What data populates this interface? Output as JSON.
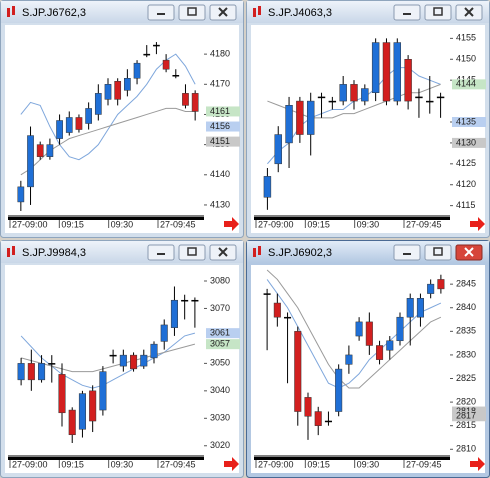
{
  "chart_data": [
    {
      "type": "candlestick",
      "title": "S.JP.J6762,3",
      "active": false,
      "up_color": "#1f6fd6",
      "down_color": "#d21f1f",
      "x_labels": [
        "27-09:00",
        "09:15",
        "09:30",
        "27-09:45"
      ],
      "open": [
        4131,
        4136,
        4150,
        4146,
        4152,
        4154,
        4159,
        4157,
        4160,
        4165,
        4171,
        4168,
        4172,
        4180,
        4183,
        4178,
        4173,
        4167,
        4167
      ],
      "high": [
        4138,
        4156,
        4151,
        4152,
        4160,
        4161,
        4160,
        4164,
        4170,
        4172,
        4172,
        4175,
        4178,
        4183,
        4184,
        4180,
        4175,
        4170,
        4168
      ],
      "low": [
        4128,
        4130,
        4145,
        4145,
        4150,
        4153,
        4154,
        4155,
        4158,
        4163,
        4163,
        4166,
        4170,
        4179,
        4180,
        4174,
        4172,
        4162,
        4158
      ],
      "close": [
        4136,
        4153,
        4146,
        4150,
        4158,
        4159,
        4155,
        4162,
        4167,
        4170,
        4165,
        4172,
        4177,
        4180,
        4183,
        4175,
        4173,
        4163,
        4161
      ],
      "series": [
        {
          "color": "#7fa7dc",
          "values": [
            4160,
            4164,
            4163,
            4156,
            4150,
            4146,
            4145,
            4147,
            4150,
            4155,
            4160,
            4163,
            4166,
            4170,
            4175,
            4178,
            4180,
            4176,
            4170
          ]
        },
        {
          "color": "#9a9a9a",
          "values": [
            4140,
            4142,
            4145,
            4148,
            4150,
            4152,
            4153,
            4154,
            4155,
            4156,
            4157,
            4158,
            4159,
            4160,
            4161,
            4162,
            4162,
            4161,
            4161
          ]
        }
      ],
      "ylim": [
        4127,
        4188
      ],
      "yticks": [
        4130,
        4140,
        4150,
        4160,
        4170,
        4180
      ],
      "price_labels": [
        {
          "value": 4161,
          "color": "#c6e5c6"
        },
        {
          "value": 4156,
          "color": "#b9cff0"
        },
        {
          "value": 4151,
          "color": "#c8c8c8"
        }
      ]
    },
    {
      "type": "candlestick",
      "title": "S.JP.J4063,3",
      "active": false,
      "up_color": "#1f6fd6",
      "down_color": "#d21f1f",
      "x_labels": [
        "27-09:00",
        "09:15",
        "09:30",
        "27-09:45"
      ],
      "open": [
        4117,
        4125,
        4130,
        4140,
        4132,
        4141,
        4140,
        4140,
        4144,
        4140,
        4142,
        4154,
        4140,
        4150,
        4141,
        4140,
        4141
      ],
      "high": [
        4124,
        4134,
        4141,
        4141,
        4142,
        4142,
        4141,
        4146,
        4145,
        4144,
        4155,
        4155,
        4155,
        4151,
        4143,
        4146,
        4142
      ],
      "low": [
        4114,
        4123,
        4124,
        4130,
        4127,
        4136,
        4138,
        4139,
        4138,
        4139,
        4140,
        4139,
        4139,
        4138,
        4136,
        4137,
        4136
      ],
      "close": [
        4122,
        4132,
        4139,
        4132,
        4140,
        4141,
        4140,
        4144,
        4140,
        4143,
        4154,
        4140,
        4154,
        4140,
        4141,
        4140,
        4141
      ],
      "series": [
        {
          "color": "#7fa7dc",
          "values": [
            4125,
            4128,
            4130,
            4134,
            4136,
            4137,
            4138,
            4138,
            4140,
            4141,
            4143,
            4146,
            4148,
            4148,
            4146,
            4145,
            4144
          ]
        },
        {
          "color": "#9a9a9a",
          "values": [
            4140,
            4139,
            4138,
            4137,
            4136,
            4136,
            4136,
            4137,
            4137,
            4138,
            4139,
            4140,
            4141,
            4142,
            4142,
            4143,
            4144
          ]
        }
      ],
      "ylim": [
        4113,
        4157
      ],
      "yticks": [
        4115,
        4120,
        4125,
        4130,
        4135,
        4145,
        4150,
        4155
      ],
      "price_labels": [
        {
          "value": 4144,
          "color": "#c6e5c6"
        },
        {
          "value": 4135,
          "color": "#b9cff0"
        },
        {
          "value": 4130,
          "color": "#c8c8c8"
        }
      ]
    },
    {
      "type": "candlestick",
      "title": "S.JP.J9984,3",
      "active": false,
      "up_color": "#1f6fd6",
      "down_color": "#d21f1f",
      "x_labels": [
        "27-09:00",
        "09:15",
        "09:30",
        "27-09:45"
      ],
      "open": [
        3044,
        3050,
        3044,
        3050,
        3046,
        3033,
        3026,
        3040,
        3033,
        3053,
        3049,
        3053,
        3049,
        3052,
        3058,
        3063,
        3073,
        3073
      ],
      "high": [
        3052,
        3055,
        3053,
        3053,
        3050,
        3034,
        3040,
        3042,
        3049,
        3055,
        3055,
        3054,
        3055,
        3058,
        3066,
        3078,
        3075,
        3074
      ],
      "low": [
        3042,
        3040,
        3043,
        3043,
        3027,
        3021,
        3023,
        3025,
        3031,
        3050,
        3047,
        3047,
        3048,
        3050,
        3055,
        3060,
        3066,
        3063
      ],
      "close": [
        3050,
        3044,
        3050,
        3050,
        3032,
        3024,
        3039,
        3029,
        3047,
        3053,
        3053,
        3048,
        3053,
        3057,
        3064,
        3073,
        3073,
        3073
      ],
      "series": [
        {
          "color": "#7fa7dc",
          "values": [
            3060,
            3056,
            3052,
            3049,
            3046,
            3044,
            3042,
            3041,
            3042,
            3044,
            3046,
            3048,
            3050,
            3052,
            3054,
            3057,
            3060,
            3061
          ]
        },
        {
          "color": "#9a9a9a",
          "values": [
            3052,
            3051,
            3050,
            3049,
            3048,
            3047,
            3047,
            3047,
            3048,
            3049,
            3050,
            3051,
            3052,
            3053,
            3054,
            3055,
            3056,
            3057
          ]
        }
      ],
      "ylim": [
        3017,
        3084
      ],
      "yticks": [
        3020,
        3030,
        3040,
        3050,
        3070,
        3080
      ],
      "price_labels": [
        {
          "value": 3061,
          "color": "#b9cff0"
        },
        {
          "value": 3057,
          "color": "#c6e5c6"
        }
      ]
    },
    {
      "type": "candlestick",
      "title": "S.JP.J6902,3",
      "active": true,
      "up_color": "#1f6fd6",
      "down_color": "#d21f1f",
      "x_labels": [
        "27-09:00",
        "09:15",
        "09:30",
        "27-09:45"
      ],
      "open": [
        2843,
        2841,
        2838,
        2835,
        2821,
        2818,
        2816,
        2818,
        2828,
        2834,
        2837,
        2832,
        2831,
        2833,
        2838,
        2838,
        2843,
        2846
      ],
      "high": [
        2844,
        2843,
        2839,
        2836,
        2822,
        2819,
        2818,
        2828,
        2832,
        2838,
        2839,
        2833,
        2834,
        2839,
        2843,
        2843,
        2846,
        2847
      ],
      "low": [
        2831,
        2836,
        2824,
        2815,
        2812,
        2813,
        2815,
        2817,
        2826,
        2833,
        2830,
        2828,
        2829,
        2832,
        2832,
        2836,
        2842,
        2843
      ],
      "close": [
        2843,
        2838,
        2838,
        2818,
        2817,
        2815,
        2816,
        2827,
        2830,
        2837,
        2832,
        2829,
        2833,
        2838,
        2842,
        2842,
        2845,
        2844
      ],
      "series": [
        {
          "color": "#7fa7dc",
          "values": [
            2846,
            2843,
            2840,
            2836,
            2832,
            2828,
            2824,
            2823,
            2824,
            2826,
            2829,
            2831,
            2833,
            2835,
            2837,
            2839,
            2840,
            2841
          ]
        },
        {
          "color": "#9a9a9a",
          "values": [
            2848,
            2846,
            2843,
            2840,
            2836,
            2832,
            2828,
            2825,
            2823,
            2823,
            2825,
            2827,
            2829,
            2831,
            2833,
            2835,
            2837,
            2838
          ]
        }
      ],
      "ylim": [
        2809,
        2848
      ],
      "yticks": [
        2810,
        2815,
        2820,
        2825,
        2830,
        2835,
        2840,
        2845
      ],
      "price_labels": [
        {
          "value": 2818,
          "color": "#c8c8c8"
        },
        {
          "value": 2817,
          "color": "#c8c8c8"
        }
      ]
    }
  ]
}
